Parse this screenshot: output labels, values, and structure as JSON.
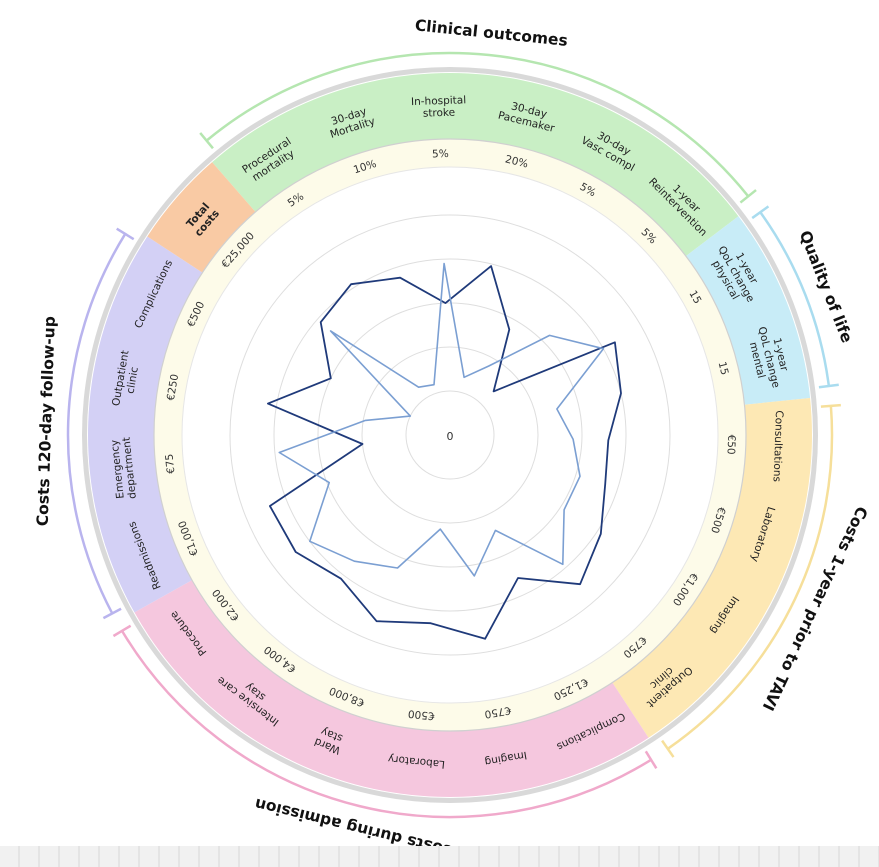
{
  "chart_data": {
    "type": "radar",
    "center_label": "0",
    "groups": [
      {
        "name": "Clinical outcomes",
        "band_color": "#c9efc5",
        "arc_color": "#b5e6b0"
      },
      {
        "name": "Quality of life",
        "band_color": "#c8ecf7",
        "arc_color": "#a9dcef"
      },
      {
        "name": "Costs 1-year prior to TAVI",
        "band_color": "#fde8b4",
        "arc_color": "#f6df9a"
      },
      {
        "name": "Costs during admission",
        "band_color": "#f5c7de",
        "arc_color": "#f0a9cb"
      },
      {
        "name": "Costs 120-day follow-up",
        "band_color": "#d3d0f5",
        "arc_color": "#b9b4ee"
      },
      {
        "name": "Total costs",
        "band_color": "#f9caa4",
        "arc_color": "#f9caa4"
      }
    ],
    "axes": [
      {
        "label": "1-year\nReintervention",
        "group": 0,
        "scale_max": "5%"
      },
      {
        "label": "1-year\nQoL change\nphysical",
        "group": 1,
        "scale_max": "15"
      },
      {
        "label": "1-year\nQoL change\nmental",
        "group": 1,
        "scale_max": "15"
      },
      {
        "label": "Consultations",
        "group": 2,
        "scale_max": "€50"
      },
      {
        "label": "Laboratory",
        "group": 2,
        "scale_max": "€500"
      },
      {
        "label": "Imaging",
        "group": 2,
        "scale_max": "€1,000"
      },
      {
        "label": "Outpatient\nclinic",
        "group": 2,
        "scale_max": "€750"
      },
      {
        "label": "Complications",
        "group": 3,
        "scale_max": "€1,250"
      },
      {
        "label": "Imaging",
        "group": 3,
        "scale_max": "€750"
      },
      {
        "label": "Laboratory",
        "group": 3,
        "scale_max": "€500"
      },
      {
        "label": "Ward\nstay",
        "group": 3,
        "scale_max": "€8,000"
      },
      {
        "label": "Intensive care\nstay",
        "group": 3,
        "scale_max": "€4,000"
      },
      {
        "label": "Procedure",
        "group": 3,
        "scale_max": "€2,000"
      },
      {
        "label": "Readmissions",
        "group": 4,
        "scale_max": "€1,000"
      },
      {
        "label": "Emergency\ndepartment",
        "group": 4,
        "scale_max": "€75"
      },
      {
        "label": "Outpatient\nclinic",
        "group": 4,
        "scale_max": "€250"
      },
      {
        "label": "Complications",
        "group": 4,
        "scale_max": "€500"
      },
      {
        "label": "Total\ncosts",
        "group": 5,
        "scale_max": "€25,000"
      },
      {
        "label": "Procedural\nmortality",
        "group": 0,
        "scale_max": "5%"
      },
      {
        "label": "30-day\nMortality",
        "group": 0,
        "scale_max": "10%"
      },
      {
        "label": "In-hospital\nstroke",
        "group": 0,
        "scale_max": "5%"
      },
      {
        "label": "30-day\nPacemaker",
        "group": 0,
        "scale_max": "20%"
      },
      {
        "label": "30-day\nVasc compl",
        "group": 0,
        "scale_max": "5%"
      }
    ],
    "range": [
      0,
      1
    ],
    "grid_rings": 5,
    "series": [
      {
        "color": "#1f3a7a",
        "values": [
          0.28,
          0.86,
          0.8,
          0.72,
          0.74,
          0.82,
          0.9,
          0.72,
          0.94,
          0.86,
          0.91,
          0.82,
          0.88,
          0.88,
          0.4,
          0.84,
          0.6,
          0.78,
          0.82,
          0.75,
          0.6,
          0.79,
          0.55
        ]
      },
      {
        "color": "#7b9fd2",
        "values": [
          0.64,
          0.8,
          0.5,
          0.56,
          0.62,
          0.62,
          0.78,
          0.48,
          0.65,
          0.43,
          0.65,
          0.72,
          0.8,
          0.59,
          0.78,
          0.39,
          0.2,
          0.72,
          0.26,
          0.24,
          0.78,
          0.27,
          0.36
        ]
      }
    ]
  }
}
